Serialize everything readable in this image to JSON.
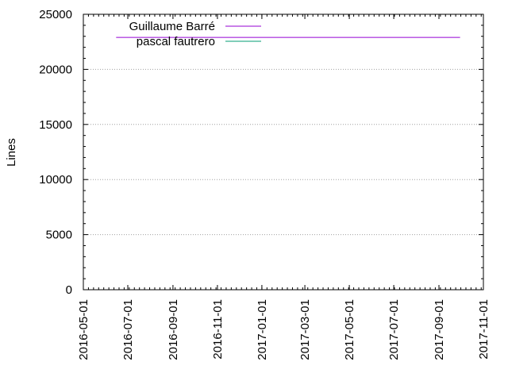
{
  "chart_data": {
    "type": "line",
    "title": "",
    "xlabel": "",
    "ylabel": "Lines",
    "ylim": [
      0,
      25000
    ],
    "xlim": [
      "2016-05-01",
      "2017-11-01"
    ],
    "y_ticks": [
      0,
      5000,
      10000,
      15000,
      20000,
      25000
    ],
    "x_ticks": [
      "2016-05-01",
      "2016-07-01",
      "2016-09-01",
      "2016-11-01",
      "2017-01-01",
      "2017-03-01",
      "2017-05-01",
      "2017-07-01",
      "2017-09-01",
      "2017-11-01"
    ],
    "grid": "y-major-dotted",
    "legend_position": "top-left",
    "series": [
      {
        "name": "Guillaume Barré",
        "color": "#9400d3",
        "x": [
          "2016-06-15",
          "2017-09-30"
        ],
        "y": [
          22900,
          22900
        ]
      },
      {
        "name": "pascal fautrero",
        "color": "#009e73",
        "x": [],
        "y": []
      }
    ]
  }
}
